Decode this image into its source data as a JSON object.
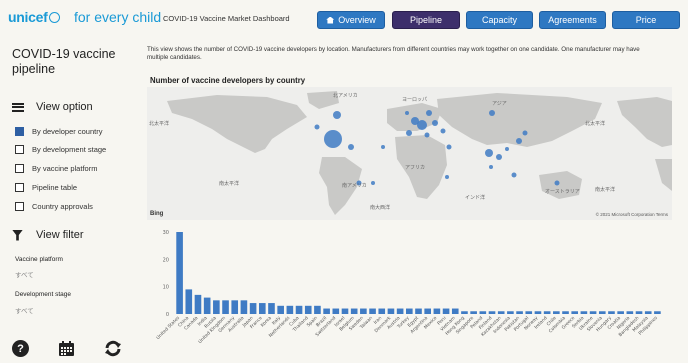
{
  "header": {
    "logo": "unicef",
    "tagline": "for every child",
    "dashboard_title": "COVID-19 Vaccine Market Dashboard",
    "nav": [
      {
        "label": "Overview",
        "active": false
      },
      {
        "label": "Pipeline",
        "active": true
      },
      {
        "label": "Capacity",
        "active": false
      },
      {
        "label": "Agreements",
        "active": false
      },
      {
        "label": "Price",
        "active": false
      }
    ]
  },
  "sidebar": {
    "title": "COVID-19 vaccine pipeline",
    "view_option_label": "View option",
    "options": [
      {
        "label": "By developer country",
        "checked": true
      },
      {
        "label": "By development stage",
        "checked": false
      },
      {
        "label": "By vaccine platform",
        "checked": false
      },
      {
        "label": "Pipeline table",
        "checked": false
      },
      {
        "label": "Country approvals",
        "checked": false
      }
    ],
    "view_filter_label": "View filter",
    "filters": [
      {
        "label": "Vaccine platform",
        "value": "すべて"
      },
      {
        "label": "Development stage",
        "value": "すべて"
      }
    ],
    "help_glyph": "?"
  },
  "main": {
    "description": "This view shows the number of COVID-19 vaccine developers by location. Manufacturers from different countries may work together on one candidate. One manufacturer may have multiple candidates.",
    "map_title": "Number of vaccine developers by country",
    "map_bing": "Bing",
    "map_copyright": "© 2021 Microsoft Corporation Terms",
    "map_labels": [
      "北太平洋",
      "北アメリカ",
      "ヨーロッパ",
      "アジア",
      "北太平洋",
      "南太平洋",
      "南アメリカ",
      "アフリカ",
      "インド洋",
      "オーストラリア",
      "南太平洋",
      "南大西洋"
    ]
  },
  "chart_data": {
    "type": "bar",
    "title": "",
    "xlabel": "",
    "ylabel": "",
    "ylim": [
      0,
      30
    ],
    "yticks": [
      0,
      10,
      20,
      30
    ],
    "color": "#3f7bc4",
    "categories": [
      "United States",
      "China",
      "Canada",
      "India",
      "Russia",
      "United Kingdom",
      "Germany",
      "Australia",
      "Japan",
      "France",
      "Korea",
      "Italy",
      "Netherlands",
      "Cuba",
      "Thailand",
      "Spain",
      "Brazil",
      "Switzerland",
      "Israel",
      "Belgium",
      "Sweden",
      "Taiwan",
      "Iran",
      "Denmark",
      "Austria",
      "Turkey",
      "Egypt",
      "Argentina",
      "Mexico",
      "Peru",
      "Vietnam",
      "Hong Kong",
      "Singapore",
      "Poland",
      "Finland",
      "Kazakhstan",
      "Indonesia",
      "Pakistan",
      "Portugal",
      "Norway",
      "Ireland",
      "Chile",
      "Colombia",
      "Greece",
      "Serbia",
      "Ukraine",
      "Slovenia",
      "Hungary",
      "Croatia",
      "Nigeria",
      "Bangladesh",
      "Malaysia",
      "Philippines"
    ],
    "values": [
      30,
      9,
      7,
      6,
      5,
      5,
      5,
      5,
      4,
      4,
      4,
      3,
      3,
      3,
      3,
      3,
      2,
      2,
      2,
      2,
      2,
      2,
      2,
      2,
      2,
      2,
      2,
      2,
      2,
      2,
      2,
      1,
      1,
      1,
      1,
      1,
      1,
      1,
      1,
      1,
      1,
      1,
      1,
      1,
      1,
      1,
      1,
      1,
      1,
      1,
      1,
      1,
      1
    ]
  }
}
